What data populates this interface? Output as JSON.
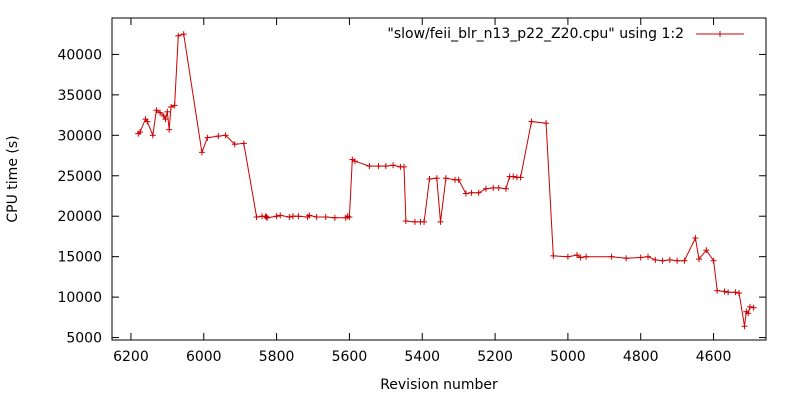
{
  "chart_data": {
    "type": "line",
    "xlabel": "Revision number",
    "ylabel": "CPU time (s)",
    "xlim": [
      6252,
      4456
    ],
    "ylim": [
      4700,
      44500
    ],
    "x_reversed": true,
    "x_ticks": [
      6200,
      6000,
      5800,
      5600,
      5400,
      5200,
      5000,
      4800,
      4600
    ],
    "y_ticks": [
      5000,
      10000,
      15000,
      20000,
      25000,
      30000,
      35000,
      40000
    ],
    "grid": false,
    "legend_position": "top-right",
    "series_color": "#cc0000",
    "marker": "plus",
    "series": [
      {
        "name": "\"slow/feii_blr_n13_p22_Z20.cpu\" using 1:2",
        "x": [
          6180,
          6175,
          6160,
          6155,
          6140,
          6130,
          6120,
          6110,
          6105,
          6100,
          6095,
          6090,
          6080,
          6070,
          6055,
          6005,
          5990,
          5960,
          5940,
          5915,
          5890,
          5855,
          5840,
          5830,
          5828,
          5826,
          5800,
          5790,
          5765,
          5755,
          5740,
          5715,
          5710,
          5690,
          5665,
          5640,
          5610,
          5605,
          5600,
          5592,
          5585,
          5545,
          5520,
          5500,
          5480,
          5460,
          5450,
          5445,
          5420,
          5405,
          5395,
          5380,
          5360,
          5350,
          5335,
          5310,
          5300,
          5280,
          5265,
          5245,
          5225,
          5205,
          5190,
          5170,
          5160,
          5150,
          5140,
          5130,
          5100,
          5060,
          5040,
          5000,
          4975,
          4965,
          4950,
          4880,
          4840,
          4800,
          4780,
          4760,
          4740,
          4720,
          4700,
          4680,
          4650,
          4640,
          4620,
          4600,
          4590,
          4570,
          4560,
          4540,
          4530,
          4515,
          4510,
          4505,
          4500,
          4490
        ],
        "y": [
          30200,
          30400,
          32000,
          31700,
          30000,
          33100,
          32800,
          32400,
          32000,
          32900,
          30700,
          33500,
          33700,
          42300,
          42500,
          27900,
          29700,
          29900,
          30000,
          28900,
          29000,
          19900,
          20000,
          20000,
          19900,
          19800,
          20000,
          20100,
          19900,
          20000,
          20000,
          19900,
          20100,
          19900,
          19900,
          19800,
          19800,
          20000,
          19900,
          27000,
          26800,
          26200,
          26200,
          26200,
          26300,
          26100,
          26100,
          19400,
          19300,
          19300,
          19300,
          24600,
          24700,
          19300,
          24700,
          24500,
          24500,
          22800,
          22900,
          22900,
          23400,
          23500,
          23500,
          23400,
          24900,
          24900,
          24800,
          24800,
          31700,
          31500,
          15100,
          15000,
          15200,
          14900,
          15000,
          15000,
          14800,
          14900,
          15000,
          14600,
          14500,
          14600,
          14500,
          14500,
          17300,
          14700,
          15800,
          14500,
          10800,
          10700,
          10600,
          10600,
          10500,
          6400,
          8200,
          8000,
          8800,
          8700
        ]
      }
    ]
  }
}
